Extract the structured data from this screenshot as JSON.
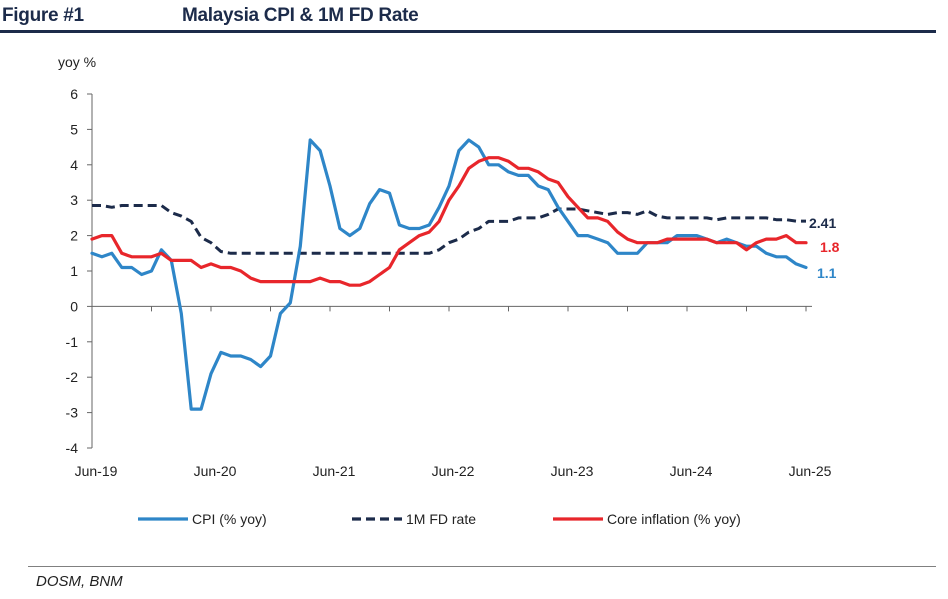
{
  "figure": {
    "label": "Figure #1",
    "title": "Malaysia CPI & 1M FD Rate",
    "source": "DOSM, BNM"
  },
  "colors": {
    "navy": "#1c2b4a",
    "cpi": "#2e86c8",
    "fd": "#1c2b4a",
    "core": "#e8262b"
  },
  "chart_data": {
    "type": "line",
    "ylabel": "yoy %",
    "ylim": [
      -4,
      6
    ],
    "yticks": [
      -4,
      -3,
      -2,
      -1,
      0,
      1,
      2,
      3,
      4,
      5,
      6
    ],
    "xticks": [
      "Jun-19",
      "Jun-20",
      "Jun-21",
      "Jun-22",
      "Jun-23",
      "Jun-24",
      "Jun-25"
    ],
    "xrange": [
      "2019-06",
      "2025-06"
    ],
    "legend_position": "bottom",
    "grid": false,
    "series": [
      {
        "name": "CPI (% yoy)",
        "style": "solid",
        "color": "#2e86c8",
        "end_label": "1.1",
        "points": [
          [
            "2019-06",
            1.5
          ],
          [
            "2019-07",
            1.4
          ],
          [
            "2019-08",
            1.5
          ],
          [
            "2019-09",
            1.1
          ],
          [
            "2019-10",
            1.1
          ],
          [
            "2019-11",
            0.9
          ],
          [
            "2019-12",
            1.0
          ],
          [
            "2020-01",
            1.6
          ],
          [
            "2020-02",
            1.3
          ],
          [
            "2020-03",
            -0.2
          ],
          [
            "2020-04",
            -2.9
          ],
          [
            "2020-05",
            -2.9
          ],
          [
            "2020-06",
            -1.9
          ],
          [
            "2020-07",
            -1.3
          ],
          [
            "2020-08",
            -1.4
          ],
          [
            "2020-09",
            -1.4
          ],
          [
            "2020-10",
            -1.5
          ],
          [
            "2020-11",
            -1.7
          ],
          [
            "2020-12",
            -1.4
          ],
          [
            "2021-01",
            -0.2
          ],
          [
            "2021-02",
            0.1
          ],
          [
            "2021-03",
            1.7
          ],
          [
            "2021-04",
            4.7
          ],
          [
            "2021-05",
            4.4
          ],
          [
            "2021-06",
            3.4
          ],
          [
            "2021-07",
            2.2
          ],
          [
            "2021-08",
            2.0
          ],
          [
            "2021-09",
            2.2
          ],
          [
            "2021-10",
            2.9
          ],
          [
            "2021-11",
            3.3
          ],
          [
            "2021-12",
            3.2
          ],
          [
            "2022-01",
            2.3
          ],
          [
            "2022-02",
            2.2
          ],
          [
            "2022-03",
            2.2
          ],
          [
            "2022-04",
            2.3
          ],
          [
            "2022-05",
            2.8
          ],
          [
            "2022-06",
            3.4
          ],
          [
            "2022-07",
            4.4
          ],
          [
            "2022-08",
            4.7
          ],
          [
            "2022-09",
            4.5
          ],
          [
            "2022-10",
            4.0
          ],
          [
            "2022-11",
            4.0
          ],
          [
            "2022-12",
            3.8
          ],
          [
            "2023-01",
            3.7
          ],
          [
            "2023-02",
            3.7
          ],
          [
            "2023-03",
            3.4
          ],
          [
            "2023-04",
            3.3
          ],
          [
            "2023-05",
            2.8
          ],
          [
            "2023-06",
            2.4
          ],
          [
            "2023-07",
            2.0
          ],
          [
            "2023-08",
            2.0
          ],
          [
            "2023-09",
            1.9
          ],
          [
            "2023-10",
            1.8
          ],
          [
            "2023-11",
            1.5
          ],
          [
            "2023-12",
            1.5
          ],
          [
            "2024-01",
            1.5
          ],
          [
            "2024-02",
            1.8
          ],
          [
            "2024-03",
            1.8
          ],
          [
            "2024-04",
            1.8
          ],
          [
            "2024-05",
            2.0
          ],
          [
            "2024-06",
            2.0
          ],
          [
            "2024-07",
            2.0
          ],
          [
            "2024-08",
            1.9
          ],
          [
            "2024-09",
            1.8
          ],
          [
            "2024-10",
            1.9
          ],
          [
            "2024-11",
            1.8
          ],
          [
            "2024-12",
            1.7
          ],
          [
            "2025-01",
            1.7
          ],
          [
            "2025-02",
            1.5
          ],
          [
            "2025-03",
            1.4
          ],
          [
            "2025-04",
            1.4
          ],
          [
            "2025-05",
            1.2
          ],
          [
            "2025-06",
            1.1
          ]
        ]
      },
      {
        "name": "1M FD rate",
        "style": "dashed",
        "color": "#1c2b4a",
        "end_label": "2.41",
        "points": [
          [
            "2019-06",
            2.85
          ],
          [
            "2019-07",
            2.85
          ],
          [
            "2019-08",
            2.8
          ],
          [
            "2019-09",
            2.85
          ],
          [
            "2019-10",
            2.85
          ],
          [
            "2019-11",
            2.85
          ],
          [
            "2019-12",
            2.85
          ],
          [
            "2020-01",
            2.85
          ],
          [
            "2020-02",
            2.65
          ],
          [
            "2020-03",
            2.55
          ],
          [
            "2020-04",
            2.4
          ],
          [
            "2020-05",
            1.95
          ],
          [
            "2020-06",
            1.8
          ],
          [
            "2020-07",
            1.55
          ],
          [
            "2020-08",
            1.5
          ],
          [
            "2021-06",
            1.5
          ],
          [
            "2022-03",
            1.5
          ],
          [
            "2022-04",
            1.5
          ],
          [
            "2022-05",
            1.6
          ],
          [
            "2022-06",
            1.8
          ],
          [
            "2022-07",
            1.9
          ],
          [
            "2022-08",
            2.1
          ],
          [
            "2022-09",
            2.2
          ],
          [
            "2022-10",
            2.4
          ],
          [
            "2022-11",
            2.4
          ],
          [
            "2022-12",
            2.4
          ],
          [
            "2023-01",
            2.5
          ],
          [
            "2023-02",
            2.5
          ],
          [
            "2023-03",
            2.5
          ],
          [
            "2023-04",
            2.6
          ],
          [
            "2023-05",
            2.75
          ],
          [
            "2023-06",
            2.75
          ],
          [
            "2023-07",
            2.75
          ],
          [
            "2023-08",
            2.7
          ],
          [
            "2023-09",
            2.65
          ],
          [
            "2023-10",
            2.6
          ],
          [
            "2023-11",
            2.65
          ],
          [
            "2023-12",
            2.65
          ],
          [
            "2024-01",
            2.6
          ],
          [
            "2024-02",
            2.7
          ],
          [
            "2024-03",
            2.55
          ],
          [
            "2024-04",
            2.5
          ],
          [
            "2024-05",
            2.5
          ],
          [
            "2024-06",
            2.5
          ],
          [
            "2024-07",
            2.5
          ],
          [
            "2024-08",
            2.5
          ],
          [
            "2024-09",
            2.45
          ],
          [
            "2024-10",
            2.5
          ],
          [
            "2024-11",
            2.5
          ],
          [
            "2024-12",
            2.5
          ],
          [
            "2025-01",
            2.5
          ],
          [
            "2025-02",
            2.5
          ],
          [
            "2025-03",
            2.45
          ],
          [
            "2025-04",
            2.45
          ],
          [
            "2025-05",
            2.41
          ],
          [
            "2025-06",
            2.41
          ]
        ]
      },
      {
        "name": "Core inflation (% yoy)",
        "style": "solid",
        "color": "#e8262b",
        "end_label": "1.8",
        "points": [
          [
            "2019-06",
            1.9
          ],
          [
            "2019-07",
            2.0
          ],
          [
            "2019-08",
            2.0
          ],
          [
            "2019-09",
            1.5
          ],
          [
            "2019-10",
            1.4
          ],
          [
            "2019-11",
            1.4
          ],
          [
            "2019-12",
            1.4
          ],
          [
            "2020-01",
            1.5
          ],
          [
            "2020-02",
            1.3
          ],
          [
            "2020-03",
            1.3
          ],
          [
            "2020-04",
            1.3
          ],
          [
            "2020-05",
            1.1
          ],
          [
            "2020-06",
            1.2
          ],
          [
            "2020-07",
            1.1
          ],
          [
            "2020-08",
            1.1
          ],
          [
            "2020-09",
            1.0
          ],
          [
            "2020-10",
            0.8
          ],
          [
            "2020-11",
            0.7
          ],
          [
            "2020-12",
            0.7
          ],
          [
            "2021-01",
            0.7
          ],
          [
            "2021-02",
            0.7
          ],
          [
            "2021-03",
            0.7
          ],
          [
            "2021-04",
            0.7
          ],
          [
            "2021-05",
            0.8
          ],
          [
            "2021-06",
            0.7
          ],
          [
            "2021-07",
            0.7
          ],
          [
            "2021-08",
            0.6
          ],
          [
            "2021-09",
            0.6
          ],
          [
            "2021-10",
            0.7
          ],
          [
            "2021-11",
            0.9
          ],
          [
            "2021-12",
            1.1
          ],
          [
            "2022-01",
            1.6
          ],
          [
            "2022-02",
            1.8
          ],
          [
            "2022-03",
            2.0
          ],
          [
            "2022-04",
            2.1
          ],
          [
            "2022-05",
            2.4
          ],
          [
            "2022-06",
            3.0
          ],
          [
            "2022-07",
            3.4
          ],
          [
            "2022-08",
            3.9
          ],
          [
            "2022-09",
            4.1
          ],
          [
            "2022-10",
            4.2
          ],
          [
            "2022-11",
            4.2
          ],
          [
            "2022-12",
            4.1
          ],
          [
            "2023-01",
            3.9
          ],
          [
            "2023-02",
            3.9
          ],
          [
            "2023-03",
            3.8
          ],
          [
            "2023-04",
            3.6
          ],
          [
            "2023-05",
            3.5
          ],
          [
            "2023-06",
            3.1
          ],
          [
            "2023-07",
            2.8
          ],
          [
            "2023-08",
            2.5
          ],
          [
            "2023-09",
            2.5
          ],
          [
            "2023-10",
            2.4
          ],
          [
            "2023-11",
            2.1
          ],
          [
            "2023-12",
            1.9
          ],
          [
            "2024-01",
            1.8
          ],
          [
            "2024-02",
            1.8
          ],
          [
            "2024-03",
            1.8
          ],
          [
            "2024-04",
            1.9
          ],
          [
            "2024-05",
            1.9
          ],
          [
            "2024-06",
            1.9
          ],
          [
            "2024-07",
            1.9
          ],
          [
            "2024-08",
            1.9
          ],
          [
            "2024-09",
            1.8
          ],
          [
            "2024-10",
            1.8
          ],
          [
            "2024-11",
            1.8
          ],
          [
            "2024-12",
            1.6
          ],
          [
            "2025-01",
            1.8
          ],
          [
            "2025-02",
            1.9
          ],
          [
            "2025-03",
            1.9
          ],
          [
            "2025-04",
            2.0
          ],
          [
            "2025-05",
            1.8
          ],
          [
            "2025-06",
            1.8
          ]
        ]
      }
    ]
  }
}
